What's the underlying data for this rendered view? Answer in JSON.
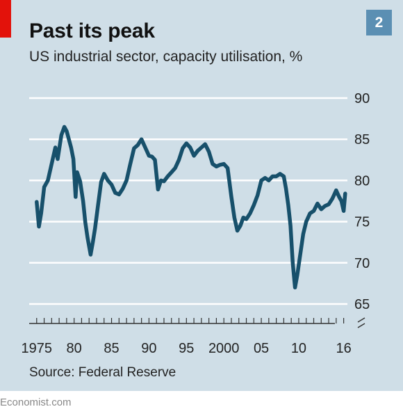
{
  "header": {
    "title": "Past its peak",
    "subtitle": "US industrial sector, capacity utilisation, %",
    "chart_number": "2"
  },
  "source": "Source: Federal Reserve",
  "footer": "Economist.com",
  "colors": {
    "panel": "#cfdee7",
    "line": "#17506b",
    "accent": "#e3120b",
    "badge": "#5b8fb3"
  },
  "chart_data": {
    "type": "line",
    "title": "Past its peak",
    "ylabel": "",
    "xlim": [
      1974,
      2016.5
    ],
    "ylim": [
      65,
      90
    ],
    "y_ticks": [
      "90",
      "85",
      "80",
      "75",
      "70",
      "65"
    ],
    "x_tick_labels": [
      "1975",
      "80",
      "85",
      "90",
      "95",
      "2000",
      "05",
      "10",
      "16"
    ],
    "x_tick_label_years": [
      1975,
      1980,
      1985,
      1990,
      1995,
      2000,
      2005,
      2010,
      2016
    ],
    "axis_break": true,
    "grid": true,
    "series": [
      {
        "x": [
          1975.0,
          1975.3,
          1975.6,
          1976.0,
          1976.5,
          1977.0,
          1977.5,
          1977.8,
          1978.3,
          1978.7,
          1979.0,
          1979.3,
          1979.6,
          1979.9,
          1980.2,
          1980.4,
          1980.8,
          1981.2,
          1981.5,
          1981.8,
          1982.2,
          1982.5,
          1982.8,
          1983.2,
          1983.6,
          1984.0,
          1984.5,
          1985.0,
          1985.5,
          1986.0,
          1986.5,
          1987.0,
          1987.5,
          1988.0,
          1988.5,
          1989.0,
          1989.5,
          1990.0,
          1990.4,
          1990.8,
          1991.2,
          1991.6,
          1992.0,
          1992.5,
          1993.0,
          1993.5,
          1994.0,
          1994.5,
          1995.0,
          1995.5,
          1996.0,
          1996.5,
          1997.0,
          1997.5,
          1998.0,
          1998.5,
          1999.0,
          1999.5,
          2000.0,
          2000.5,
          2001.0,
          2001.4,
          2001.8,
          2002.2,
          2002.6,
          2003.0,
          2003.5,
          2004.0,
          2004.5,
          2005.0,
          2005.5,
          2006.0,
          2006.5,
          2007.0,
          2007.5,
          2008.0,
          2008.3,
          2008.6,
          2008.9,
          2009.2,
          2009.5,
          2009.8,
          2010.2,
          2010.6,
          2011.0,
          2011.5,
          2012.0,
          2012.5,
          2013.0,
          2013.5,
          2014.0,
          2014.5,
          2015.0,
          2015.4,
          2015.7,
          2016.0,
          2016.2
        ],
        "values": [
          77.4,
          74.4,
          76.0,
          79.2,
          80.0,
          82.0,
          84.0,
          82.6,
          85.5,
          86.5,
          86.0,
          85.0,
          84.0,
          82.6,
          78.0,
          81.0,
          79.9,
          77.5,
          74.9,
          73.0,
          71.0,
          72.5,
          74.2,
          77.0,
          79.8,
          80.8,
          80.0,
          79.5,
          78.5,
          78.3,
          79.0,
          80.0,
          82.0,
          83.9,
          84.3,
          85.0,
          84.0,
          83.0,
          82.9,
          82.5,
          78.9,
          80.0,
          79.9,
          80.5,
          81.0,
          81.5,
          82.5,
          83.9,
          84.5,
          84.0,
          83.0,
          83.6,
          84.0,
          84.4,
          83.5,
          82.0,
          81.7,
          81.9,
          82.0,
          81.5,
          78.0,
          75.5,
          73.9,
          74.5,
          75.5,
          75.3,
          76.0,
          77.0,
          78.2,
          80.0,
          80.3,
          80.0,
          80.5,
          80.5,
          80.8,
          80.5,
          79.0,
          77.0,
          74.5,
          70.0,
          67.0,
          68.5,
          71.0,
          73.5,
          75.0,
          76.0,
          76.3,
          77.2,
          76.5,
          76.9,
          77.1,
          77.8,
          78.8,
          78.0,
          77.5,
          76.3,
          78.4
        ]
      }
    ]
  }
}
